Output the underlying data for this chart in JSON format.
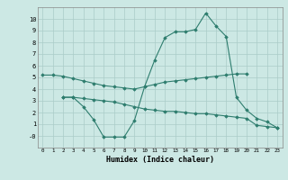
{
  "xlabel": "Humidex (Indice chaleur)",
  "x": [
    0,
    1,
    2,
    3,
    4,
    5,
    6,
    7,
    8,
    9,
    10,
    11,
    12,
    13,
    14,
    15,
    16,
    17,
    18,
    19,
    20,
    21,
    22,
    23
  ],
  "line1": [
    5.2,
    5.2,
    5.1,
    4.9,
    4.7,
    4.5,
    4.3,
    4.2,
    4.1,
    4.0,
    4.2,
    4.4,
    4.6,
    4.7,
    4.8,
    4.9,
    5.0,
    5.1,
    5.2,
    5.3,
    5.3,
    null,
    null,
    null
  ],
  "line2": [
    null,
    null,
    3.3,
    3.3,
    2.5,
    1.4,
    -0.1,
    -0.1,
    -0.1,
    1.3,
    4.2,
    6.5,
    8.4,
    8.9,
    8.9,
    9.1,
    10.5,
    9.4,
    8.5,
    3.3,
    2.2,
    1.5,
    1.2,
    0.7
  ],
  "line3": [
    null,
    null,
    3.3,
    3.3,
    3.2,
    3.1,
    3.0,
    2.9,
    2.7,
    2.5,
    2.3,
    2.2,
    2.1,
    2.1,
    2.0,
    1.9,
    1.9,
    1.8,
    1.7,
    1.6,
    1.5,
    0.9,
    0.8,
    0.7
  ],
  "ylim": [
    -1,
    11
  ],
  "yticks": [
    0,
    1,
    2,
    3,
    4,
    5,
    6,
    7,
    8,
    9,
    10
  ],
  "ytick_labels": [
    "-0",
    "1",
    "2",
    "3",
    "4",
    "5",
    "6",
    "7",
    "8",
    "9",
    "10"
  ],
  "line_color": "#2e7d6e",
  "bg_color": "#cce8e4",
  "grid_color": "#aaccc8"
}
